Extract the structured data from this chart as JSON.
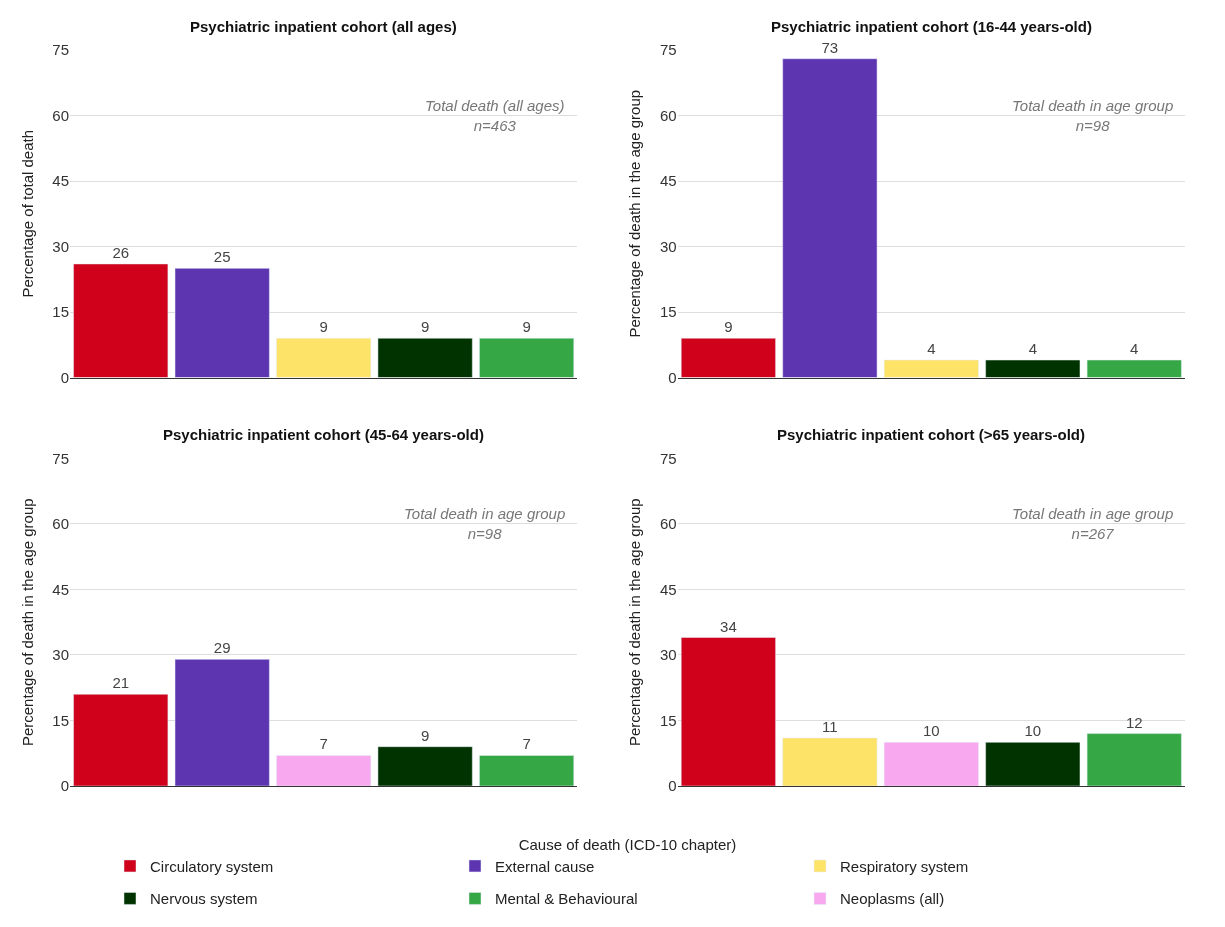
{
  "chart_data": [
    {
      "type": "bar",
      "title": "Psychiatric inpatient cohort (all ages)",
      "ylabel": "Percentage of total death",
      "categories": [
        null,
        null,
        null,
        null,
        null
      ],
      "ylim": [
        0,
        75
      ],
      "yticks": [
        0,
        15,
        30,
        45,
        60,
        75
      ],
      "grid": "y",
      "data_labels": true,
      "legend": "bottom",
      "annotations": [
        "Total death (all ages)\nn=463"
      ],
      "series": [
        {
          "name": "Circulatory system",
          "color": "#d0021b",
          "values": [
            26,
            null,
            null,
            null,
            null
          ]
        },
        {
          "name": "External cause",
          "color": "#5e35b1",
          "values": [
            null,
            25,
            null,
            null,
            null
          ]
        },
        {
          "name": "Respiratory system",
          "color": "#fde368",
          "values": [
            null,
            null,
            9,
            null,
            null
          ]
        },
        {
          "name": "Nervous system",
          "color": "#003300",
          "values": [
            null,
            null,
            null,
            9,
            null
          ]
        },
        {
          "name": "Mental & Behavioural",
          "color": "#35a845",
          "values": [
            null,
            null,
            null,
            null,
            9
          ]
        }
      ]
    },
    {
      "type": "bar",
      "title": "Psychiatric inpatient cohort (16-44 years-old)",
      "ylabel": "Percentage of death in the age group",
      "categories": [
        null,
        null,
        null,
        null,
        null
      ],
      "ylim": [
        0,
        75
      ],
      "yticks": [
        0,
        15,
        30,
        45,
        60,
        75
      ],
      "grid": "y",
      "data_labels": true,
      "legend": "bottom",
      "annotations": [
        "Total death in age group\nn=98"
      ],
      "series": [
        {
          "name": "Circulatory system",
          "color": "#d0021b",
          "values": [
            9,
            null,
            null,
            null,
            null
          ]
        },
        {
          "name": "External cause",
          "color": "#5e35b1",
          "values": [
            null,
            73,
            null,
            null,
            null
          ]
        },
        {
          "name": "Respiratory system",
          "color": "#fde368",
          "values": [
            null,
            null,
            4,
            null,
            null
          ]
        },
        {
          "name": "Nervous system",
          "color": "#003300",
          "values": [
            null,
            null,
            null,
            4,
            null
          ]
        },
        {
          "name": "Mental & Behavioural",
          "color": "#35a845",
          "values": [
            null,
            null,
            null,
            null,
            4
          ]
        }
      ]
    },
    {
      "type": "bar",
      "title": "Psychiatric inpatient cohort (45-64 years-old)",
      "ylabel": "Percentage of death in the age group",
      "categories": [
        null,
        null,
        null,
        null,
        null
      ],
      "ylim": [
        0,
        75
      ],
      "yticks": [
        0,
        15,
        30,
        45,
        60,
        75
      ],
      "grid": "y",
      "data_labels": true,
      "legend": "bottom",
      "legend_title": "Cause of death (ICD-10 chapter)",
      "annotations": [
        "Total death in age group\nn=98"
      ],
      "series": [
        {
          "name": "Circulatory system",
          "color": "#d0021b",
          "values": [
            21,
            null,
            null,
            null,
            null
          ]
        },
        {
          "name": "External cause",
          "color": "#5e35b1",
          "values": [
            null,
            29,
            null,
            null,
            null
          ]
        },
        {
          "name": "Neoplasms (all)",
          "color": "#f7a8ef",
          "values": [
            null,
            null,
            7,
            null,
            null
          ]
        },
        {
          "name": "Nervous system",
          "color": "#003300",
          "values": [
            null,
            null,
            null,
            9,
            null
          ]
        },
        {
          "name": "Mental & Behavioural",
          "color": "#35a845",
          "values": [
            null,
            null,
            null,
            null,
            7
          ]
        }
      ]
    },
    {
      "type": "bar",
      "title": "Psychiatric inpatient cohort (>65 years-old)",
      "ylabel": "Percentage of death in the age group",
      "categories": [
        null,
        null,
        null,
        null,
        null
      ],
      "ylim": [
        0,
        75
      ],
      "yticks": [
        0,
        15,
        30,
        45,
        60,
        75
      ],
      "grid": "y",
      "data_labels": true,
      "legend": "bottom",
      "annotations": [
        "Total death in age group\nn=267"
      ],
      "series": [
        {
          "name": "Circulatory system",
          "color": "#d0021b",
          "values": [
            34,
            null,
            null,
            null,
            null
          ]
        },
        {
          "name": "Respiratory system",
          "color": "#fde368",
          "values": [
            null,
            11,
            null,
            null,
            null
          ]
        },
        {
          "name": "Neoplasms (all)",
          "color": "#f7a8ef",
          "values": [
            null,
            null,
            10,
            null,
            null
          ]
        },
        {
          "name": "Nervous system",
          "color": "#003300",
          "values": [
            null,
            null,
            null,
            10,
            null
          ]
        },
        {
          "name": "Mental & Behavioural",
          "color": "#35a845",
          "values": [
            null,
            null,
            null,
            null,
            12
          ]
        }
      ]
    }
  ]
}
